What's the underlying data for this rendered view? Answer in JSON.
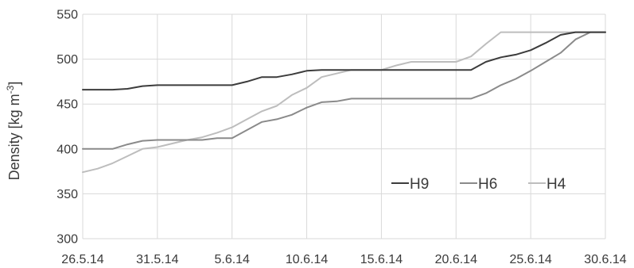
{
  "chart_data": {
    "type": "line",
    "xlabel": "",
    "ylabel": "Density [kg m",
    "ylabel_sup": "-3",
    "ylabel_close": "]",
    "ylim": [
      300,
      550
    ],
    "yticks": [
      300,
      350,
      400,
      450,
      500,
      550
    ],
    "xlim": [
      "2014-05-26",
      "2014-06-30"
    ],
    "xticks": [
      {
        "date": "2014-05-26",
        "label": "26.5.14"
      },
      {
        "date": "2014-05-31",
        "label": "31.5.14"
      },
      {
        "date": "2014-06-05",
        "label": "5.6.14"
      },
      {
        "date": "2014-06-10",
        "label": "10.6.14"
      },
      {
        "date": "2014-06-15",
        "label": "15.6.14"
      },
      {
        "date": "2014-06-20",
        "label": "20.6.14"
      },
      {
        "date": "2014-06-25",
        "label": "25.6.14"
      },
      {
        "date": "2014-06-30",
        "label": "30.6.14"
      }
    ],
    "grid": true,
    "legend_position": "lower-right",
    "series": [
      {
        "name": "H9",
        "color": "#3c3c3c",
        "points": [
          [
            "2014-05-26",
            466
          ],
          [
            "2014-05-28",
            466
          ],
          [
            "2014-05-29",
            467
          ],
          [
            "2014-05-30",
            470
          ],
          [
            "2014-05-31",
            471
          ],
          [
            "2014-06-01",
            471
          ],
          [
            "2014-06-04",
            471
          ],
          [
            "2014-06-05",
            471
          ],
          [
            "2014-06-06",
            475
          ],
          [
            "2014-06-07",
            480
          ],
          [
            "2014-06-08",
            480
          ],
          [
            "2014-06-09",
            483
          ],
          [
            "2014-06-10",
            487
          ],
          [
            "2014-06-11",
            488
          ],
          [
            "2014-06-15",
            488
          ],
          [
            "2014-06-20",
            488
          ],
          [
            "2014-06-21",
            488
          ],
          [
            "2014-06-22",
            497
          ],
          [
            "2014-06-23",
            502
          ],
          [
            "2014-06-24",
            505
          ],
          [
            "2014-06-25",
            510
          ],
          [
            "2014-06-26",
            518
          ],
          [
            "2014-06-27",
            527
          ],
          [
            "2014-06-28",
            530
          ],
          [
            "2014-06-30",
            530
          ]
        ]
      },
      {
        "name": "H6",
        "color": "#8a8a8a",
        "points": [
          [
            "2014-05-26",
            400
          ],
          [
            "2014-05-28",
            400
          ],
          [
            "2014-05-29",
            405
          ],
          [
            "2014-05-30",
            409
          ],
          [
            "2014-05-31",
            410
          ],
          [
            "2014-06-03",
            410
          ],
          [
            "2014-06-04",
            412
          ],
          [
            "2014-06-05",
            412
          ],
          [
            "2014-06-06",
            421
          ],
          [
            "2014-06-07",
            430
          ],
          [
            "2014-06-08",
            433
          ],
          [
            "2014-06-09",
            438
          ],
          [
            "2014-06-10",
            446
          ],
          [
            "2014-06-11",
            452
          ],
          [
            "2014-06-12",
            453
          ],
          [
            "2014-06-13",
            456
          ],
          [
            "2014-06-15",
            456
          ],
          [
            "2014-06-20",
            456
          ],
          [
            "2014-06-21",
            456
          ],
          [
            "2014-06-22",
            462
          ],
          [
            "2014-06-23",
            471
          ],
          [
            "2014-06-24",
            478
          ],
          [
            "2014-06-25",
            487
          ],
          [
            "2014-06-26",
            497
          ],
          [
            "2014-06-27",
            507
          ],
          [
            "2014-06-28",
            522
          ],
          [
            "2014-06-29",
            530
          ],
          [
            "2014-06-30",
            530
          ]
        ]
      },
      {
        "name": "H4",
        "color": "#bdbdbd",
        "points": [
          [
            "2014-05-26",
            374
          ],
          [
            "2014-05-27",
            378
          ],
          [
            "2014-05-28",
            384
          ],
          [
            "2014-05-29",
            392
          ],
          [
            "2014-05-30",
            400
          ],
          [
            "2014-05-31",
            402
          ],
          [
            "2014-06-01",
            406
          ],
          [
            "2014-06-02",
            410
          ],
          [
            "2014-06-03",
            413
          ],
          [
            "2014-06-04",
            418
          ],
          [
            "2014-06-05",
            424
          ],
          [
            "2014-06-06",
            433
          ],
          [
            "2014-06-07",
            442
          ],
          [
            "2014-06-08",
            448
          ],
          [
            "2014-06-09",
            460
          ],
          [
            "2014-06-10",
            468
          ],
          [
            "2014-06-11",
            480
          ],
          [
            "2014-06-12",
            484
          ],
          [
            "2014-06-13",
            488
          ],
          [
            "2014-06-15",
            488
          ],
          [
            "2014-06-16",
            493
          ],
          [
            "2014-06-17",
            497
          ],
          [
            "2014-06-18",
            497
          ],
          [
            "2014-06-20",
            497
          ],
          [
            "2014-06-21",
            503
          ],
          [
            "2014-06-22",
            517
          ],
          [
            "2014-06-23",
            530
          ],
          [
            "2014-06-24",
            530
          ],
          [
            "2014-06-30",
            530
          ]
        ]
      }
    ]
  }
}
